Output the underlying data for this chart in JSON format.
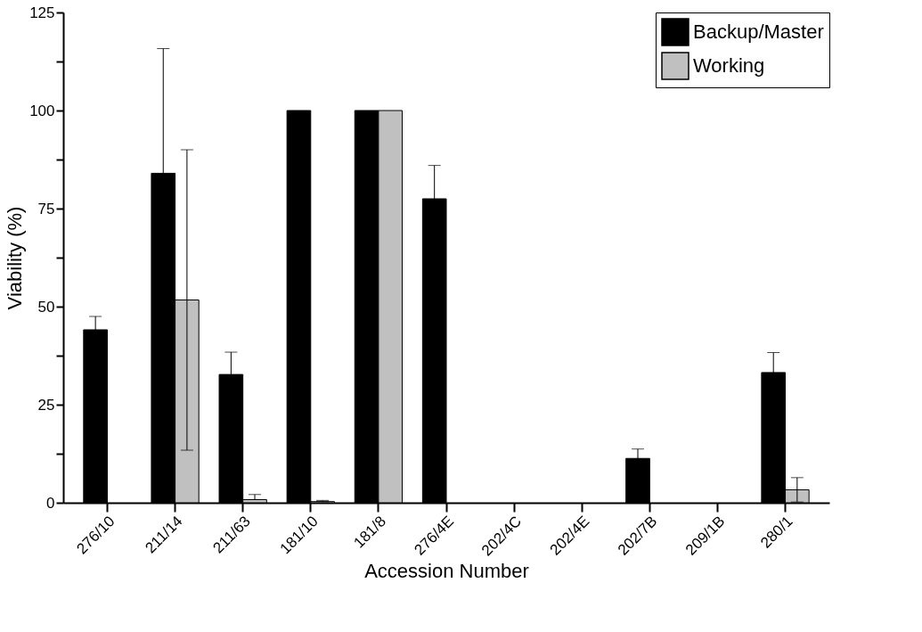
{
  "chart_data": {
    "type": "bar",
    "xlabel": "Accession Number",
    "ylabel": "Viability (%)",
    "categories": [
      "276/10",
      "211/14",
      "211/63",
      "181/10",
      "181/8",
      "276/4E",
      "202/4C",
      "202/4E",
      "202/7B",
      "209/1B",
      "280/1"
    ],
    "series": [
      {
        "name": "Backup/Master",
        "color": "#000000",
        "values": [
          44.1,
          84.0,
          32.7,
          100,
          100,
          77.5,
          null,
          null,
          11.3,
          null,
          33.2
        ],
        "errors": [
          3.4,
          31.8,
          5.7,
          null,
          null,
          8.5,
          null,
          null,
          2.4,
          null,
          5.1
        ]
      },
      {
        "name": "Working",
        "color": "#c0c0c0",
        "values": [
          null,
          51.7,
          0.8,
          0.3,
          100,
          null,
          null,
          null,
          null,
          null,
          3.3
        ],
        "errors": [
          null,
          38.3,
          [
            0.8,
            2.1
          ],
          [
            0.3,
            0.6
          ],
          null,
          null,
          null,
          null,
          null,
          null,
          3.1
        ]
      }
    ],
    "ylim": [
      0,
      125
    ],
    "yticks": [
      0,
      {
        "value": 12.5,
        "label": null
      },
      25,
      {
        "value": 37.5,
        "label": null
      },
      50,
      {
        "value": 62.5,
        "label": null
      },
      75,
      {
        "value": 87.5,
        "label": null
      },
      100,
      {
        "value": 112.5,
        "label": null
      },
      125
    ],
    "legend": "top right",
    "grid": false
  }
}
